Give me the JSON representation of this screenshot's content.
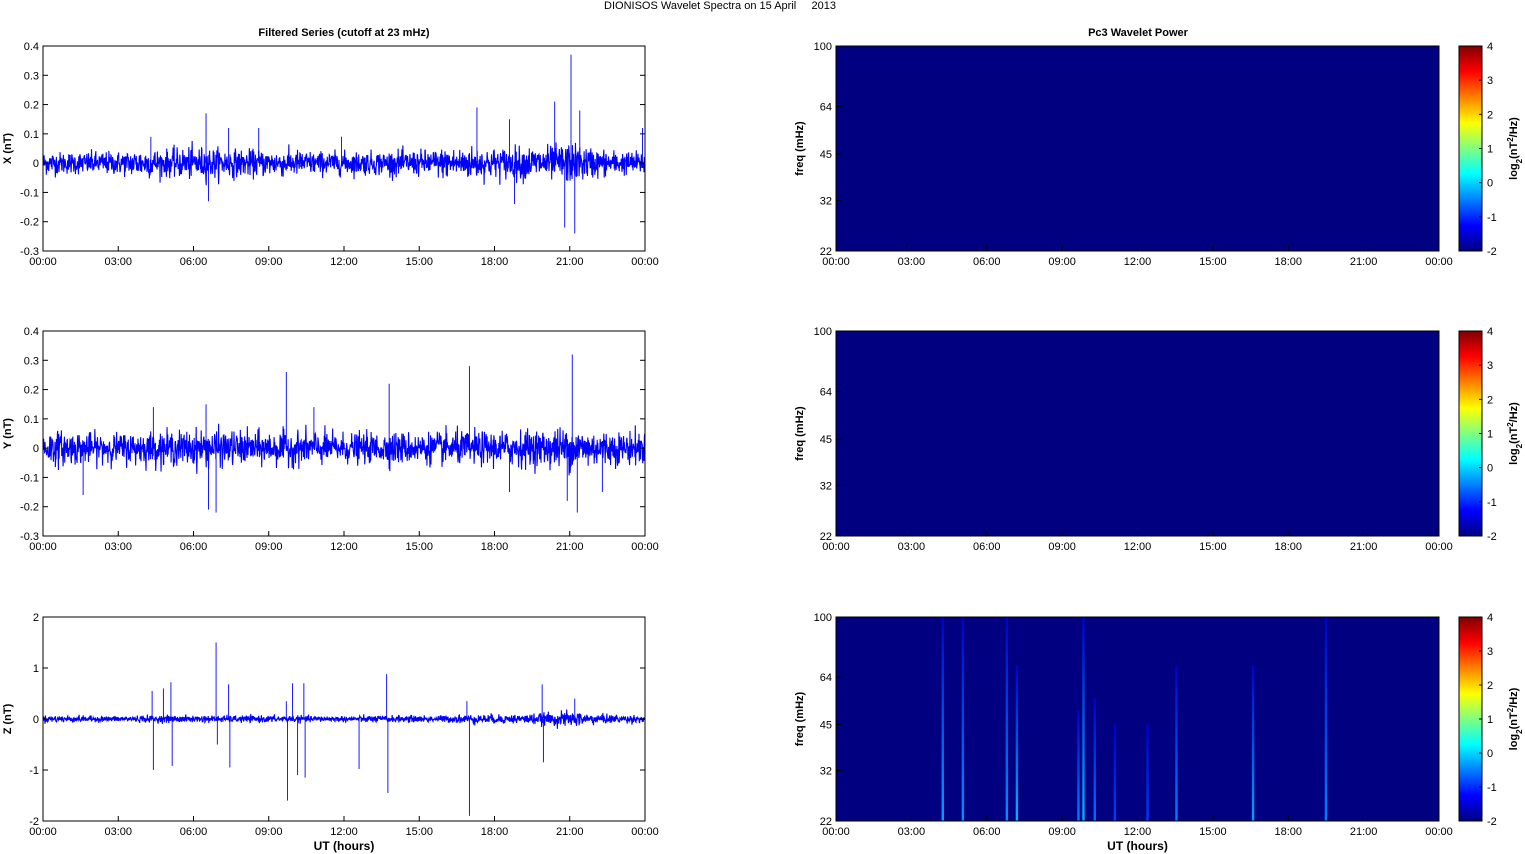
{
  "figure": {
    "title": "DIONISOS Wavelet Spectra on 15 April     2013",
    "left_column_title": "Filtered Series (cutoff at 23 mHz)",
    "right_column_title": "Pc3 Wavelet Power",
    "xlabel": "UT (hours)"
  },
  "chart_data": [
    {
      "type": "line",
      "panel": "X",
      "ylabel": "X (nT)",
      "x_ticks": [
        "00:00",
        "03:00",
        "06:00",
        "09:00",
        "12:00",
        "15:00",
        "18:00",
        "21:00",
        "00:00"
      ],
      "xlim_hours": [
        0,
        24
      ],
      "ylim": [
        -0.3,
        0.4
      ],
      "y_ticks": [
        -0.3,
        -0.2,
        -0.1,
        0,
        0.1,
        0.2,
        0.3,
        0.4
      ],
      "y_tick_labels": [
        "-0.3",
        "-0.2",
        "-0.1",
        "0",
        "0.1",
        "0.2",
        "0.3",
        "0.4"
      ],
      "series": [
        {
          "color": "#0000ff",
          "envelope": {
            "x_hours": [
              0,
              1,
              2,
              3,
              4,
              5,
              6,
              7,
              8,
              9,
              10,
              11,
              12,
              13,
              14,
              15,
              16,
              17,
              18,
              19,
              20,
              21,
              22,
              23,
              24
            ],
            "amplitude": [
              0.035,
              0.033,
              0.035,
              0.035,
              0.045,
              0.04,
              0.05,
              0.045,
              0.04,
              0.04,
              0.04,
              0.035,
              0.035,
              0.035,
              0.038,
              0.038,
              0.045,
              0.05,
              0.045,
              0.05,
              0.05,
              0.06,
              0.045,
              0.035,
              0.035
            ]
          },
          "spikes": [
            {
              "x": 4.3,
              "y": 0.09
            },
            {
              "x": 6.5,
              "y": 0.17
            },
            {
              "x": 6.6,
              "y": -0.13
            },
            {
              "x": 7.4,
              "y": 0.12
            },
            {
              "x": 8.6,
              "y": 0.12
            },
            {
              "x": 11.9,
              "y": 0.09
            },
            {
              "x": 17.3,
              "y": 0.19
            },
            {
              "x": 18.6,
              "y": 0.15
            },
            {
              "x": 18.8,
              "y": -0.14
            },
            {
              "x": 20.4,
              "y": 0.21
            },
            {
              "x": 20.8,
              "y": -0.22
            },
            {
              "x": 21.05,
              "y": 0.37
            },
            {
              "x": 21.2,
              "y": -0.24
            },
            {
              "x": 21.4,
              "y": 0.18
            },
            {
              "x": 23.9,
              "y": 0.12
            }
          ]
        }
      ]
    },
    {
      "type": "line",
      "panel": "Y",
      "ylabel": "Y (nT)",
      "x_ticks": [
        "00:00",
        "03:00",
        "06:00",
        "09:00",
        "12:00",
        "15:00",
        "18:00",
        "21:00",
        "00:00"
      ],
      "xlim_hours": [
        0,
        24
      ],
      "ylim": [
        -0.3,
        0.4
      ],
      "y_ticks": [
        -0.3,
        -0.2,
        -0.1,
        0,
        0.1,
        0.2,
        0.3,
        0.4
      ],
      "y_tick_labels": [
        "-0.3",
        "-0.2",
        "-0.1",
        "0",
        "0.1",
        "0.2",
        "0.3",
        "0.4"
      ],
      "series": [
        {
          "color": "#0000ff",
          "envelope": {
            "x_hours": [
              0,
              1,
              2,
              3,
              4,
              5,
              6,
              7,
              8,
              9,
              10,
              11,
              12,
              13,
              14,
              15,
              16,
              17,
              18,
              19,
              20,
              21,
              22,
              23,
              24
            ],
            "amplitude": [
              0.055,
              0.05,
              0.045,
              0.045,
              0.05,
              0.05,
              0.055,
              0.055,
              0.05,
              0.05,
              0.05,
              0.05,
              0.045,
              0.045,
              0.05,
              0.045,
              0.05,
              0.05,
              0.05,
              0.055,
              0.055,
              0.065,
              0.055,
              0.05,
              0.05
            ]
          },
          "spikes": [
            {
              "x": 1.6,
              "y": -0.16
            },
            {
              "x": 4.4,
              "y": 0.14
            },
            {
              "x": 6.5,
              "y": 0.15
            },
            {
              "x": 6.6,
              "y": -0.21
            },
            {
              "x": 6.9,
              "y": -0.22
            },
            {
              "x": 9.7,
              "y": 0.26
            },
            {
              "x": 10.8,
              "y": 0.14
            },
            {
              "x": 13.8,
              "y": 0.22
            },
            {
              "x": 17.0,
              "y": 0.28
            },
            {
              "x": 18.6,
              "y": -0.15
            },
            {
              "x": 20.9,
              "y": -0.18
            },
            {
              "x": 21.1,
              "y": 0.32
            },
            {
              "x": 21.3,
              "y": -0.22
            },
            {
              "x": 22.3,
              "y": -0.15
            }
          ]
        }
      ]
    },
    {
      "type": "line",
      "panel": "Z",
      "ylabel": "Z (nT)",
      "x_ticks": [
        "00:00",
        "03:00",
        "06:00",
        "09:00",
        "12:00",
        "15:00",
        "18:00",
        "21:00",
        "00:00"
      ],
      "xlim_hours": [
        0,
        24
      ],
      "ylim": [
        -2,
        2
      ],
      "y_ticks": [
        -2,
        -1,
        0,
        1,
        2
      ],
      "y_tick_labels": [
        "-2",
        "-1",
        "0",
        "1",
        "2"
      ],
      "series": [
        {
          "color": "#0000ff",
          "envelope": {
            "x_hours": [
              0,
              1,
              2,
              3,
              4,
              5,
              6,
              7,
              8,
              9,
              10,
              11,
              12,
              13,
              14,
              15,
              16,
              17,
              18,
              19,
              20,
              21,
              22,
              23,
              24
            ],
            "amplitude": [
              0.06,
              0.06,
              0.05,
              0.05,
              0.06,
              0.06,
              0.06,
              0.06,
              0.06,
              0.06,
              0.06,
              0.05,
              0.05,
              0.06,
              0.06,
              0.06,
              0.06,
              0.08,
              0.08,
              0.08,
              0.1,
              0.14,
              0.09,
              0.07,
              0.07
            ]
          },
          "spikes": [
            {
              "x": 4.35,
              "y": 0.55
            },
            {
              "x": 4.4,
              "y": -1.0
            },
            {
              "x": 4.8,
              "y": 0.6
            },
            {
              "x": 5.1,
              "y": 0.72
            },
            {
              "x": 5.15,
              "y": -0.92
            },
            {
              "x": 6.9,
              "y": 1.5
            },
            {
              "x": 6.95,
              "y": -0.5
            },
            {
              "x": 7.4,
              "y": 0.68
            },
            {
              "x": 7.45,
              "y": -0.95
            },
            {
              "x": 9.7,
              "y": 0.35
            },
            {
              "x": 9.75,
              "y": -1.6
            },
            {
              "x": 9.95,
              "y": 0.7
            },
            {
              "x": 10.15,
              "y": -1.1
            },
            {
              "x": 10.4,
              "y": 0.7
            },
            {
              "x": 10.45,
              "y": -1.15
            },
            {
              "x": 12.6,
              "y": -0.98
            },
            {
              "x": 13.7,
              "y": 0.88
            },
            {
              "x": 13.75,
              "y": -1.45
            },
            {
              "x": 16.9,
              "y": 0.35
            },
            {
              "x": 17.0,
              "y": -1.9
            },
            {
              "x": 19.9,
              "y": 0.68
            },
            {
              "x": 19.95,
              "y": -0.85
            },
            {
              "x": 21.2,
              "y": 0.4
            }
          ]
        }
      ]
    },
    {
      "type": "heatmap",
      "panel": "X wavelet",
      "ylabel": "freq (mHz)",
      "colorbar_label": "log2(nT2/Hz)",
      "x_ticks": [
        "00:00",
        "03:00",
        "06:00",
        "09:00",
        "12:00",
        "15:00",
        "18:00",
        "21:00",
        "00:00"
      ],
      "xlim_hours": [
        0,
        24
      ],
      "y_tick_labels": [
        "22",
        "32",
        "45",
        "64",
        "100"
      ],
      "y_log_values": [
        22,
        32,
        45,
        64,
        100
      ],
      "ylim": [
        22,
        100
      ],
      "clim": [
        -2,
        4
      ],
      "colorbar_ticks": [
        "-2",
        "-1",
        "0",
        "1",
        "2",
        "3",
        "4"
      ],
      "background_value": -2,
      "streaks": []
    },
    {
      "type": "heatmap",
      "panel": "Y wavelet",
      "ylabel": "freq (mHz)",
      "colorbar_label": "log2(nT2/Hz)",
      "x_ticks": [
        "00:00",
        "03:00",
        "06:00",
        "09:00",
        "12:00",
        "15:00",
        "18:00",
        "21:00",
        "00:00"
      ],
      "xlim_hours": [
        0,
        24
      ],
      "y_tick_labels": [
        "22",
        "32",
        "45",
        "64",
        "100"
      ],
      "y_log_values": [
        22,
        32,
        45,
        64,
        100
      ],
      "ylim": [
        22,
        100
      ],
      "clim": [
        -2,
        4
      ],
      "colorbar_ticks": [
        "-2",
        "-1",
        "0",
        "1",
        "2",
        "3",
        "4"
      ],
      "background_value": -2,
      "streaks": []
    },
    {
      "type": "heatmap",
      "panel": "Z wavelet",
      "ylabel": "freq (mHz)",
      "colorbar_label": "log2(nT2/Hz)",
      "x_ticks": [
        "00:00",
        "03:00",
        "06:00",
        "09:00",
        "12:00",
        "15:00",
        "18:00",
        "21:00",
        "00:00"
      ],
      "xlim_hours": [
        0,
        24
      ],
      "y_tick_labels": [
        "22",
        "32",
        "45",
        "64",
        "100"
      ],
      "y_log_values": [
        22,
        32,
        45,
        64,
        100
      ],
      "ylim": [
        22,
        100
      ],
      "clim": [
        -2,
        4
      ],
      "colorbar_ticks": [
        "-2",
        "-1",
        "0",
        "1",
        "2",
        "3",
        "4"
      ],
      "background_value": -2,
      "streaks": [
        {
          "x": 4.25,
          "fmax": 100,
          "peak": -0.3
        },
        {
          "x": 5.05,
          "fmax": 100,
          "peak": -0.4
        },
        {
          "x": 6.8,
          "fmax": 100,
          "peak": -0.4
        },
        {
          "x": 7.2,
          "fmax": 70,
          "peak": -0.2
        },
        {
          "x": 9.65,
          "fmax": 50,
          "peak": -0.5
        },
        {
          "x": 9.85,
          "fmax": 100,
          "peak": -0.2
        },
        {
          "x": 10.3,
          "fmax": 55,
          "peak": -0.6
        },
        {
          "x": 11.1,
          "fmax": 45,
          "peak": -0.9
        },
        {
          "x": 12.4,
          "fmax": 45,
          "peak": -0.9
        },
        {
          "x": 13.55,
          "fmax": 70,
          "peak": -0.5
        },
        {
          "x": 16.6,
          "fmax": 70,
          "peak": -0.3
        },
        {
          "x": 19.5,
          "fmax": 100,
          "peak": -0.5
        }
      ]
    }
  ]
}
